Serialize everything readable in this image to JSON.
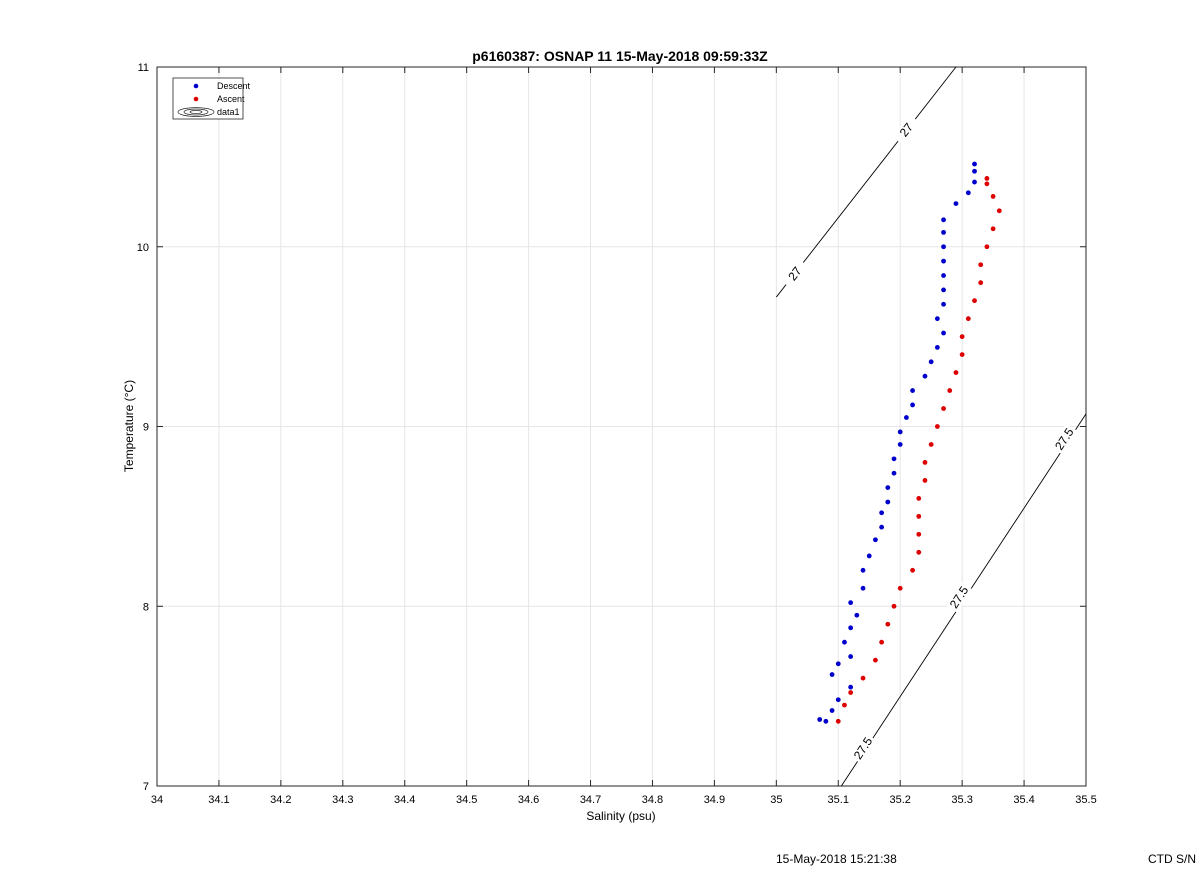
{
  "chart_data": {
    "type": "scatter",
    "title": "p6160387: OSNAP 11 15-May-2018 09:59:33Z",
    "xlabel": "Salinity (psu)",
    "ylabel": "Temperature (°C)",
    "xlim": [
      34,
      35.5
    ],
    "ylim": [
      7,
      11
    ],
    "xticks": [
      "34",
      "34.1",
      "34.2",
      "34.3",
      "34.4",
      "34.5",
      "34.6",
      "34.7",
      "34.8",
      "34.9",
      "35",
      "35.1",
      "35.2",
      "35.3",
      "35.4",
      "35.5"
    ],
    "yticks": [
      "7",
      "8",
      "9",
      "10",
      "11"
    ],
    "grid": true,
    "legend_position": "top-left",
    "legend": [
      "Descent",
      "Ascent",
      "data1"
    ],
    "series": [
      {
        "name": "Descent",
        "color": "#0000cc",
        "marker": "dot",
        "points": [
          [
            35.07,
            7.37
          ],
          [
            35.08,
            7.36
          ],
          [
            35.09,
            7.42
          ],
          [
            35.1,
            7.48
          ],
          [
            35.12,
            7.55
          ],
          [
            35.09,
            7.62
          ],
          [
            35.1,
            7.68
          ],
          [
            35.12,
            7.72
          ],
          [
            35.11,
            7.8
          ],
          [
            35.12,
            7.88
          ],
          [
            35.13,
            7.95
          ],
          [
            35.12,
            8.02
          ],
          [
            35.14,
            8.1
          ],
          [
            35.14,
            8.2
          ],
          [
            35.15,
            8.28
          ],
          [
            35.16,
            8.37
          ],
          [
            35.17,
            8.44
          ],
          [
            35.17,
            8.52
          ],
          [
            35.18,
            8.58
          ],
          [
            35.18,
            8.66
          ],
          [
            35.19,
            8.74
          ],
          [
            35.19,
            8.82
          ],
          [
            35.2,
            8.9
          ],
          [
            35.2,
            8.97
          ],
          [
            35.21,
            9.05
          ],
          [
            35.22,
            9.12
          ],
          [
            35.22,
            9.2
          ],
          [
            35.24,
            9.28
          ],
          [
            35.25,
            9.36
          ],
          [
            35.26,
            9.44
          ],
          [
            35.27,
            9.52
          ],
          [
            35.26,
            9.6
          ],
          [
            35.27,
            9.68
          ],
          [
            35.27,
            9.76
          ],
          [
            35.27,
            9.84
          ],
          [
            35.27,
            9.92
          ],
          [
            35.27,
            10.0
          ],
          [
            35.27,
            10.08
          ],
          [
            35.27,
            10.15
          ],
          [
            35.29,
            10.24
          ],
          [
            35.31,
            10.3
          ],
          [
            35.32,
            10.36
          ],
          [
            35.32,
            10.42
          ],
          [
            35.32,
            10.46
          ]
        ]
      },
      {
        "name": "Ascent",
        "color": "#dd0000",
        "marker": "dot",
        "points": [
          [
            35.1,
            7.36
          ],
          [
            35.11,
            7.45
          ],
          [
            35.12,
            7.52
          ],
          [
            35.14,
            7.6
          ],
          [
            35.16,
            7.7
          ],
          [
            35.17,
            7.8
          ],
          [
            35.18,
            7.9
          ],
          [
            35.19,
            8.0
          ],
          [
            35.2,
            8.1
          ],
          [
            35.22,
            8.2
          ],
          [
            35.23,
            8.3
          ],
          [
            35.23,
            8.4
          ],
          [
            35.23,
            8.5
          ],
          [
            35.23,
            8.6
          ],
          [
            35.24,
            8.7
          ],
          [
            35.24,
            8.8
          ],
          [
            35.25,
            8.9
          ],
          [
            35.26,
            9.0
          ],
          [
            35.27,
            9.1
          ],
          [
            35.28,
            9.2
          ],
          [
            35.29,
            9.3
          ],
          [
            35.3,
            9.4
          ],
          [
            35.3,
            9.5
          ],
          [
            35.31,
            9.6
          ],
          [
            35.32,
            9.7
          ],
          [
            35.33,
            9.8
          ],
          [
            35.33,
            9.9
          ],
          [
            35.34,
            10.0
          ],
          [
            35.35,
            10.1
          ],
          [
            35.36,
            10.2
          ],
          [
            35.35,
            10.28
          ],
          [
            35.34,
            10.35
          ],
          [
            35.34,
            10.38
          ]
        ]
      }
    ],
    "contours": [
      {
        "label": "27",
        "points": [
          [
            35.0,
            9.72
          ],
          [
            35.29,
            11.0
          ]
        ],
        "label_positions": [
          [
            35.03,
            9.85
          ],
          [
            35.21,
            10.65
          ]
        ]
      },
      {
        "label": "27.5",
        "points": [
          [
            35.105,
            7.0
          ],
          [
            35.5,
            9.07
          ]
        ],
        "label_positions": [
          [
            35.14,
            7.21
          ],
          [
            35.295,
            8.05
          ],
          [
            35.465,
            8.93
          ]
        ]
      }
    ]
  },
  "footer": {
    "timestamp": "15-May-2018 15:21:38",
    "right_text": "CTD S/N"
  }
}
